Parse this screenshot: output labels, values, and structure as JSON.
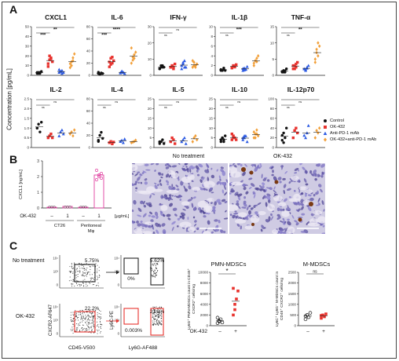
{
  "panels": {
    "A": {
      "letter": "A",
      "ylabel": "Concentration [pg/mL]",
      "cytokines": [
        {
          "name": "CXCL1",
          "ticks": [
            "50",
            "40",
            "30",
            "20",
            "10",
            "0"
          ],
          "stars": [
            "**",
            "***"
          ],
          "ymax": 50,
          "values": [
            [
              2,
              3,
              2,
              4,
              3,
              2,
              3
            ],
            [
              9,
              16,
              18,
              14,
              12,
              20,
              17
            ],
            [
              3,
              4,
              5,
              3,
              6,
              4,
              2
            ],
            [
              8,
              14,
              18,
              22,
              12,
              10,
              15
            ]
          ]
        },
        {
          "name": "IL-6",
          "ticks": [
            "80",
            "60",
            "40",
            "20",
            "0"
          ],
          "stars": [
            "****",
            "***"
          ],
          "ymax": 80,
          "values": [
            [
              3,
              2,
              4,
              3,
              5,
              2,
              3
            ],
            [
              14,
              18,
              30,
              24,
              22,
              28,
              20
            ],
            [
              4,
              6,
              5,
              3,
              4,
              7,
              5
            ],
            [
              20,
              30,
              28,
              38,
              45,
              25,
              34
            ]
          ]
        },
        {
          "name": "IFN-γ",
          "ticks": [
            "30",
            "20",
            "10",
            "0"
          ],
          "stars": [
            "ns",
            "ns"
          ],
          "ymax": 30,
          "values": [
            [
              4,
              5,
              6,
              5,
              4,
              6,
              5
            ],
            [
              5,
              6,
              4,
              7,
              5,
              6,
              5
            ],
            [
              4,
              7,
              9,
              5,
              6,
              8,
              5
            ],
            [
              5,
              8,
              6,
              7,
              9,
              6,
              5
            ]
          ]
        },
        {
          "name": "IL-1β",
          "ticks": [
            "10",
            "8",
            "6",
            "4",
            "2",
            "0"
          ],
          "stars": [
            "***",
            "ns"
          ],
          "ymax": 10,
          "values": [
            [
              1,
              1,
              1.5,
              1,
              1.2,
              1,
              1.3
            ],
            [
              1.5,
              2,
              1.8,
              2.2,
              1.6,
              2,
              1.7
            ],
            [
              1,
              1.5,
              1.2,
              1.8,
              1.4,
              1.1,
              1.3
            ],
            [
              2,
              3,
              3.5,
              4,
              2.5,
              3,
              2.8
            ]
          ]
        },
        {
          "name": "TNF-α",
          "ticks": [
            "15",
            "10",
            "5",
            "0"
          ],
          "stars": [
            "**",
            "ns"
          ],
          "ymax": 15,
          "values": [
            [
              1,
              1.5,
              1,
              2,
              1.2,
              1,
              1.4
            ],
            [
              2,
              3,
              2.5,
              4,
              3,
              2,
              3.5
            ],
            [
              2,
              1.5,
              2.5,
              3,
              2,
              1.8,
              2.2
            ],
            [
              5,
              8,
              6,
              9,
              4,
              7,
              10
            ]
          ]
        },
        {
          "name": "IL-2",
          "ticks": [
            "2.5",
            "2.0",
            "1.5",
            "1.0",
            "0.5",
            "0"
          ],
          "stars": [
            "ns",
            "ns"
          ],
          "ymax": 2.5,
          "values": [
            [
              1,
              1.2,
              0.8,
              1.3,
              1
            ],
            [
              0.5,
              0.6,
              0.7,
              0.5
            ],
            [
              0.6,
              0.8,
              0.9,
              0.7
            ],
            [
              0.7,
              0.8,
              0.6,
              0.9
            ]
          ]
        },
        {
          "name": "IL-4",
          "ticks": [
            "80",
            "60",
            "40",
            "20",
            "0"
          ],
          "stars": [
            "ns",
            "ns"
          ],
          "ymax": 80,
          "values": [
            [
              10,
              20,
              25,
              15,
              12
            ],
            [
              8,
              10,
              6,
              9
            ],
            [
              10,
              12,
              8,
              14
            ],
            [
              8,
              9,
              10,
              12
            ]
          ]
        },
        {
          "name": "IL-5",
          "ticks": [
            "25",
            "20",
            "15",
            "10",
            "5",
            "0"
          ],
          "stars": [
            "ns",
            "ns"
          ],
          "ymax": 25,
          "values": [
            [
              2,
              3,
              4,
              2,
              3
            ],
            [
              3,
              5,
              4,
              2
            ],
            [
              3,
              4,
              5,
              2
            ],
            [
              3,
              5,
              6,
              4
            ]
          ]
        },
        {
          "name": "IL-10",
          "ticks": [
            "25",
            "20",
            "15",
            "10",
            "5",
            "0"
          ],
          "stars": [
            "ns",
            "ns"
          ],
          "ymax": 25,
          "values": [
            [
              3,
              5,
              4,
              6,
              4,
              5,
              3
            ],
            [
              4,
              6,
              5,
              4,
              7,
              5
            ],
            [
              4,
              5,
              6,
              3,
              5,
              6
            ],
            [
              5,
              7,
              9,
              6,
              8,
              5,
              7
            ]
          ]
        },
        {
          "name": "IL-12p70",
          "ticks": [
            "100",
            "80",
            "60",
            "40",
            "20",
            "0"
          ],
          "stars": [
            "ns",
            "ns"
          ],
          "ymax": 100,
          "values": [
            [
              15,
              30,
              20,
              40,
              25,
              10
            ],
            [
              20,
              35,
              40,
              30
            ],
            [
              25,
              20,
              30,
              45
            ],
            [
              20,
              35,
              30,
              40
            ]
          ]
        }
      ],
      "legend": [
        {
          "label": "Control",
          "color": "#111111",
          "shape": "circle"
        },
        {
          "label": "OK-432",
          "color": "#e8332e",
          "shape": "square"
        },
        {
          "label": "Anti-PD-1 mAb",
          "color": "#2d5be3",
          "shape": "triangle"
        },
        {
          "label": "OK-432+anti-PD-1 mAb",
          "color": "#f2a03a",
          "shape": "diamond"
        }
      ]
    },
    "B": {
      "letter": "B",
      "ylabel": "CXCL1 [ng/mL]",
      "yticks": [
        "3",
        "2",
        "1",
        "0"
      ],
      "row_label": "OK-432",
      "doses": [
        "–",
        "1",
        "–",
        "1"
      ],
      "unit": "[μg/mL]",
      "groups": [
        "CT26",
        "Peritoneal Mφ"
      ],
      "values": [
        0.05,
        0.1,
        0.05,
        2.1
      ],
      "points_last": [
        1.8,
        2.0,
        2.2,
        2.4,
        2.1,
        1.9
      ],
      "img_titles": [
        "No treatment",
        "OK-432"
      ]
    },
    "C": {
      "letter": "C",
      "rows": [
        "No treatment",
        "OK-432"
      ],
      "gate1": [
        "5.75%",
        "22.2%"
      ],
      "gate2_top": [
        "5.62%",
        "21.8%"
      ],
      "gate2_low": [
        "0%",
        "0.003%"
      ],
      "axis_x1": "CD45-V500",
      "axis_y1": "CXCR2-AF647",
      "axis_x2": "Ly6G-AF488",
      "axis_y2": "Ly6C-PE",
      "pmn": {
        "title": "PMN-MDSCs",
        "ylabel": "Ly6G⁺ PMN-MDSCs count in CD45⁺ CXCR2⁺ cells/mg",
        "yticks": [
          "10000",
          "8000",
          "6000",
          "4000",
          "2000",
          "0"
        ],
        "sig": "*",
        "xlabel_row": "OK-432",
        "xcats": [
          "–",
          "+"
        ],
        "values": [
          [
            500,
            800,
            1200,
            600,
            1500,
            900
          ],
          [
            2000,
            4000,
            5000,
            6500,
            7000,
            3000
          ]
        ]
      },
      "mmdsc": {
        "title": "M-MDSCs",
        "ylabel": "Ly6C⁺ Ly6G⁻ M-MDSCs count in CD45⁺ CXCR2⁺ cells/mg",
        "yticks": [
          "2500",
          "2000",
          "1500",
          "1000",
          "500",
          "0"
        ],
        "sig": "ns",
        "xcats": [
          "–",
          "+"
        ],
        "values": [
          [
            300,
            500,
            400,
            600,
            450
          ],
          [
            350,
            500,
            420,
            550,
            480
          ]
        ]
      }
    }
  },
  "colors": {
    "control": "#111111",
    "ok432": "#e8332e",
    "antipd1": "#2d5be3",
    "combo": "#f2a03a",
    "magenta": "#e040a0"
  }
}
